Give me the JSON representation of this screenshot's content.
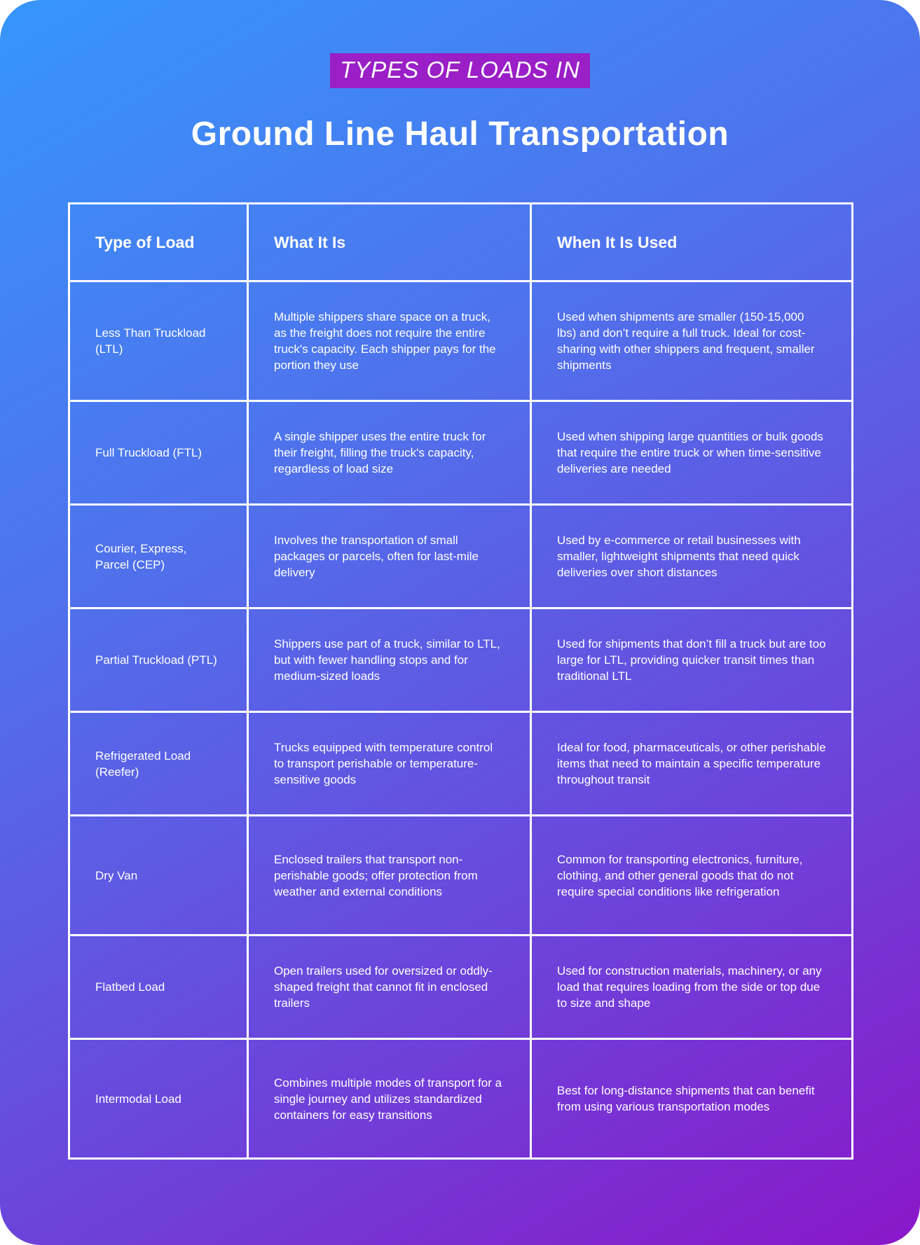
{
  "header": {
    "eyebrow": "TYPES OF LOADS IN",
    "title": "Ground Line Haul Transportation"
  },
  "table": {
    "columns": [
      "Type of Load",
      "What It Is",
      "When It Is Used"
    ],
    "rows": [
      {
        "type": "Less Than Truckload (LTL)",
        "what": "Multiple shippers share space on a truck, as the freight does not require the entire truck's capacity. Each shipper pays for the portion they use",
        "when": "Used when shipments are smaller (150-15,000 lbs) and don’t require a full truck. Ideal for cost-sharing with other shippers and frequent, smaller shipments"
      },
      {
        "type": "Full Truckload (FTL)",
        "what": "A single shipper uses the entire truck for their freight, filling the truck's capacity, regardless of load size",
        "when": "Used when shipping large quantities or bulk goods that require the entire truck or when time-sensitive deliveries are needed"
      },
      {
        "type": "Courier, Express, Parcel (CEP)",
        "what": "Involves the transportation of small packages or parcels, often for last-mile delivery",
        "when": "Used by e-commerce or retail businesses with smaller, lightweight shipments that need quick deliveries over short distances"
      },
      {
        "type": "Partial Truckload (PTL)",
        "what": "Shippers use part of a truck, similar to LTL, but with fewer handling stops and for medium-sized loads",
        "when": "Used for shipments that don’t fill a truck but are too large for LTL, providing quicker transit times than traditional LTL"
      },
      {
        "type": "Refrigerated Load (Reefer)",
        "what": "Trucks equipped with temperature control to transport perishable or temperature-sensitive goods",
        "when": "Ideal for food, pharmaceuticals, or other perishable items that need to maintain a specific temperature throughout transit"
      },
      {
        "type": "Dry Van",
        "what": "Enclosed trailers that transport non-perishable goods; offer protection from weather and external conditions",
        "when": "Common for transporting electronics, furniture, clothing, and other general goods that do not require special conditions like refrigeration"
      },
      {
        "type": "Flatbed Load",
        "what": "Open trailers used for oversized or oddly-shaped freight that cannot fit in enclosed trailers",
        "when": "Used for construction materials, machinery, or any load that requires loading from the side or top due to size and shape"
      },
      {
        "type": "Intermodal Load",
        "what": "Combines multiple modes of transport for a single journey and utilizes standardized containers for easy transitions",
        "when": "Best for long-distance shipments that can benefit from using various transportation modes"
      }
    ]
  }
}
